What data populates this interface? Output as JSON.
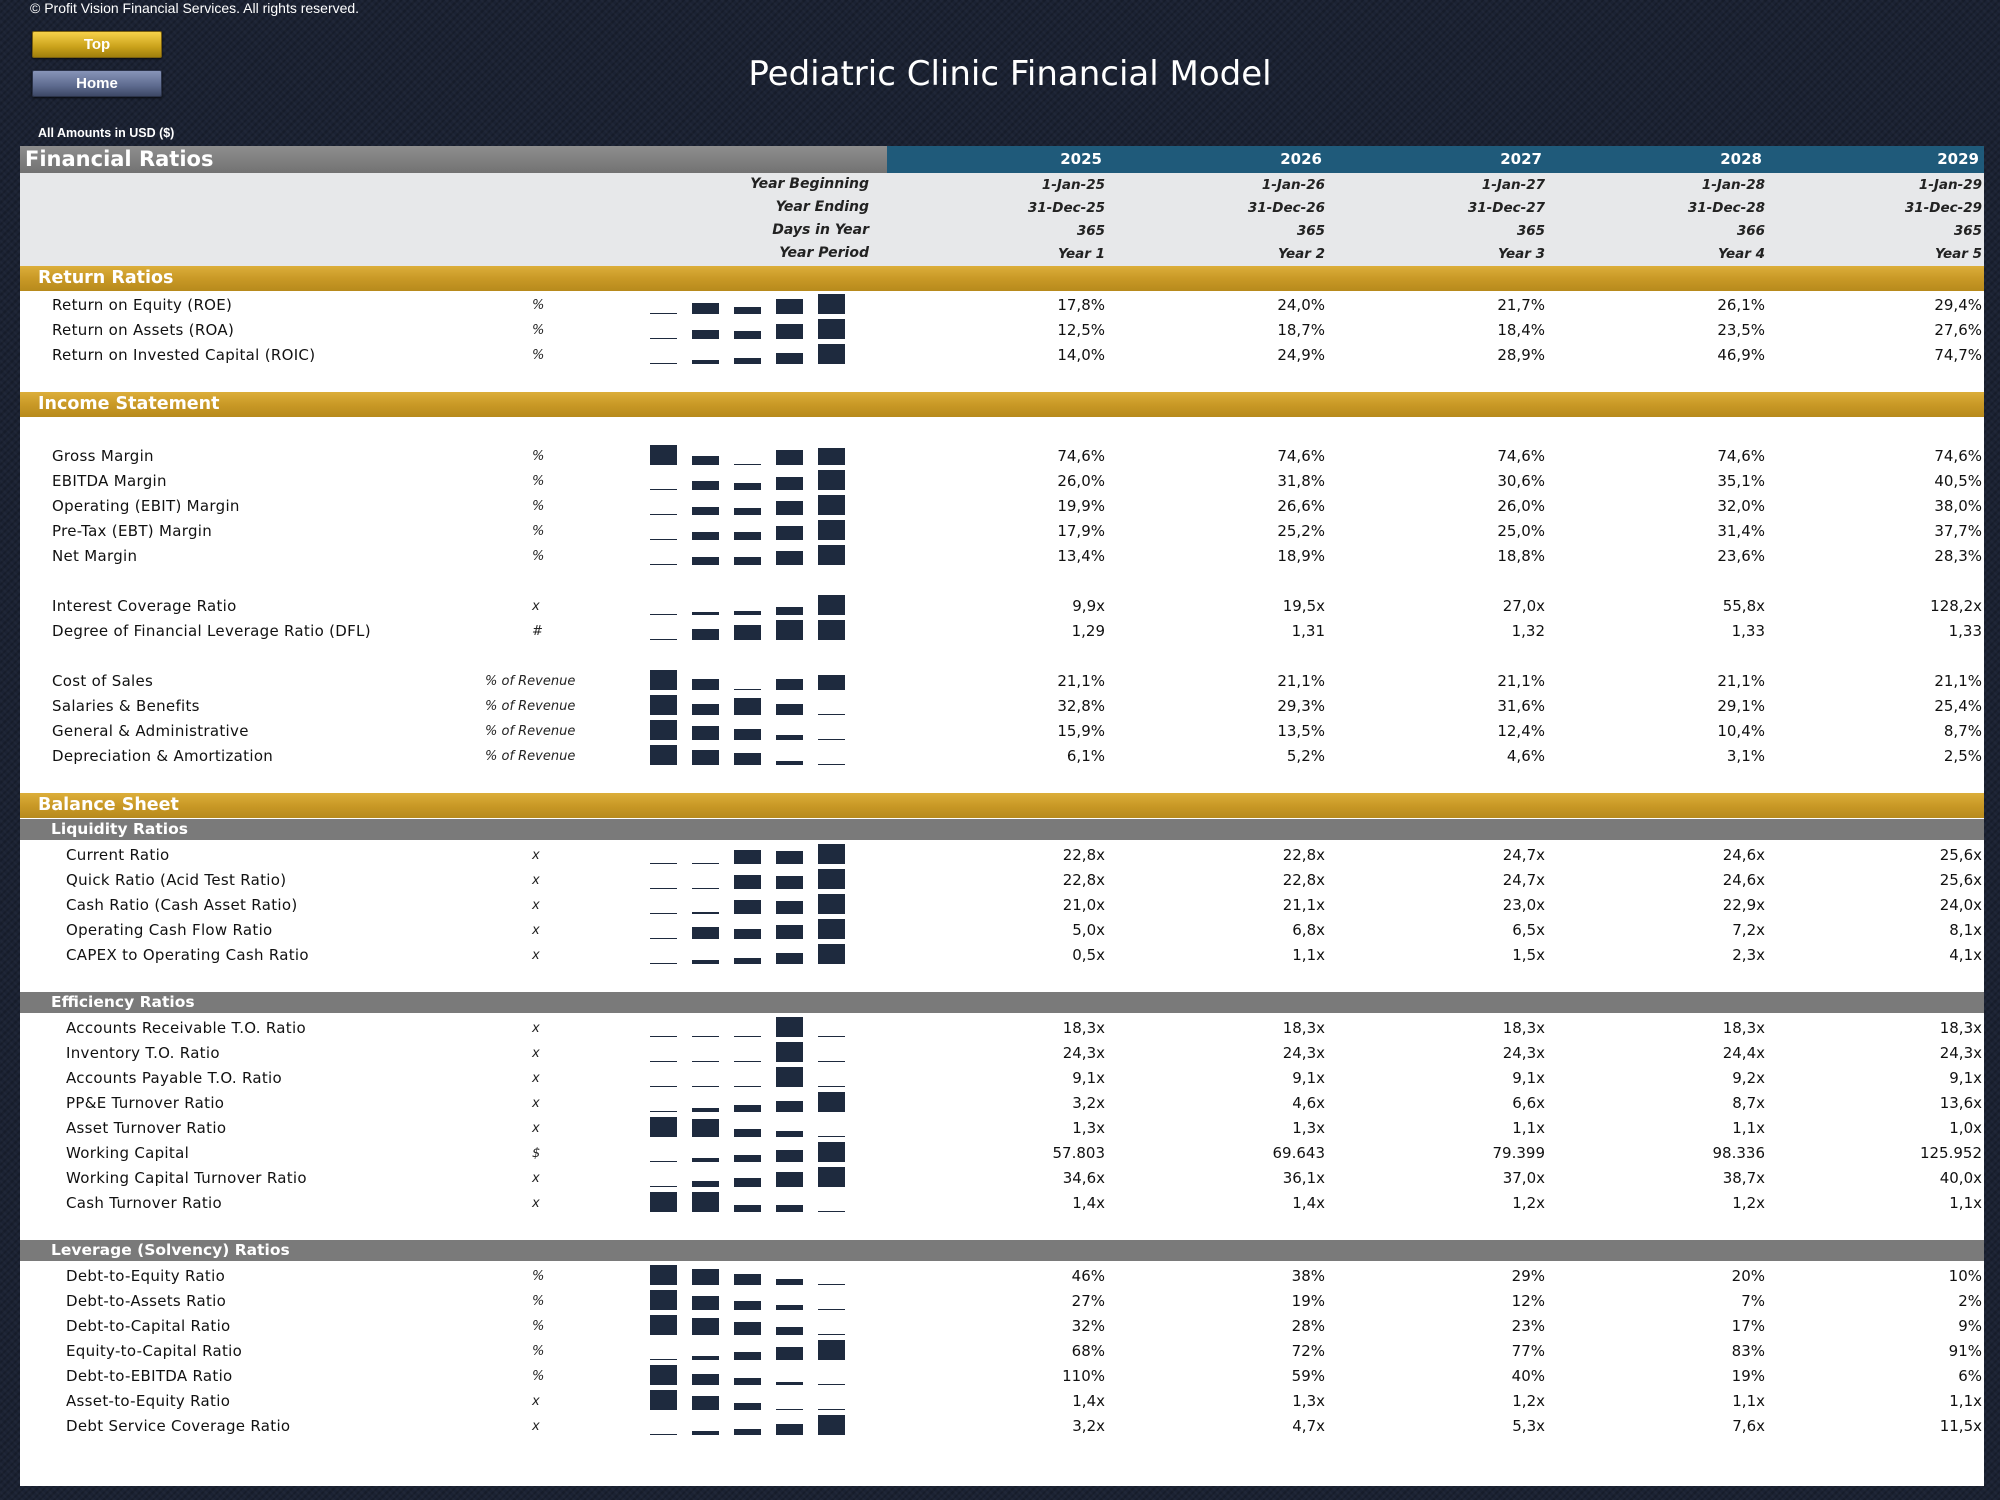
{
  "copyright": "© Profit Vision Financial Services. All rights reserved.",
  "nav": {
    "top_label": "Top",
    "home_label": "Home"
  },
  "title": "Pediatric Clinic Financial Model",
  "amounts_note": "All Amounts in  USD ($)",
  "header": {
    "section_title": "Financial Ratios",
    "years": [
      "2025",
      "2026",
      "2027",
      "2028",
      "2029"
    ]
  },
  "periods": [
    {
      "label": "Year Beginning",
      "values": [
        "1-Jan-25",
        "1-Jan-26",
        "1-Jan-27",
        "1-Jan-28",
        "1-Jan-29"
      ]
    },
    {
      "label": "Year Ending",
      "values": [
        "31-Dec-25",
        "31-Dec-26",
        "31-Dec-27",
        "31-Dec-28",
        "31-Dec-29"
      ]
    },
    {
      "label": "Days in Year",
      "values": [
        "365",
        "365",
        "365",
        "366",
        "365"
      ]
    },
    {
      "label": "Year Period",
      "values": [
        "Year 1",
        "Year 2",
        "Year 3",
        "Year 4",
        "Year 5"
      ]
    }
  ],
  "sections": [
    {
      "kind": "gold",
      "title": "Return Ratios"
    },
    {
      "kind": "row",
      "label": "Return on Equity (ROE)",
      "unit": "%",
      "values": [
        "17,8%",
        "24,0%",
        "21,7%",
        "26,1%",
        "29,4%"
      ],
      "spark": [
        17.8,
        24.0,
        21.7,
        26.1,
        29.4
      ]
    },
    {
      "kind": "row",
      "label": "Return on Assets (ROA)",
      "unit": "%",
      "values": [
        "12,5%",
        "18,7%",
        "18,4%",
        "23,5%",
        "27,6%"
      ],
      "spark": [
        12.5,
        18.7,
        18.4,
        23.5,
        27.6
      ]
    },
    {
      "kind": "row",
      "label": "Return on Invested Capital (ROIC)",
      "unit": "%",
      "values": [
        "14,0%",
        "24,9%",
        "28,9%",
        "46,9%",
        "74,7%"
      ],
      "spark": [
        14.0,
        24.9,
        28.9,
        46.9,
        74.7
      ]
    },
    {
      "kind": "gap"
    },
    {
      "kind": "gold",
      "title": "Income Statement"
    },
    {
      "kind": "gap"
    },
    {
      "kind": "row",
      "label": "Gross Margin",
      "unit": "%",
      "values": [
        "74,6%",
        "74,6%",
        "74,6%",
        "74,6%",
        "74,6%"
      ],
      "spark": [
        74.62,
        74.58,
        74.55,
        74.6,
        74.61
      ]
    },
    {
      "kind": "row",
      "label": "EBITDA Margin",
      "unit": "%",
      "values": [
        "26,0%",
        "31,8%",
        "30,6%",
        "35,1%",
        "40,5%"
      ],
      "spark": [
        26.0,
        31.8,
        30.6,
        35.1,
        40.5
      ]
    },
    {
      "kind": "row",
      "label": "Operating (EBIT) Margin",
      "unit": "%",
      "values": [
        "19,9%",
        "26,6%",
        "26,0%",
        "32,0%",
        "38,0%"
      ],
      "spark": [
        19.9,
        26.6,
        26.0,
        32.0,
        38.0
      ]
    },
    {
      "kind": "row",
      "label": "Pre-Tax (EBT) Margin",
      "unit": "%",
      "values": [
        "17,9%",
        "25,2%",
        "25,0%",
        "31,4%",
        "37,7%"
      ],
      "spark": [
        17.9,
        25.2,
        25.0,
        31.4,
        37.7
      ]
    },
    {
      "kind": "row",
      "label": "Net Margin",
      "unit": "%",
      "values": [
        "13,4%",
        "18,9%",
        "18,8%",
        "23,6%",
        "28,3%"
      ],
      "spark": [
        13.4,
        18.9,
        18.8,
        23.6,
        28.3
      ]
    },
    {
      "kind": "gap"
    },
    {
      "kind": "row",
      "label": "Interest Coverage Ratio",
      "unit": "x",
      "values": [
        "9,9x",
        "19,5x",
        "27,0x",
        "55,8x",
        "128,2x"
      ],
      "spark": [
        9.9,
        19.5,
        27.0,
        55.8,
        128.2
      ]
    },
    {
      "kind": "row",
      "label": "Degree of Financial Leverage Ratio (DFL)",
      "unit": "#",
      "values": [
        "1,29",
        "1,31",
        "1,32",
        "1,33",
        "1,33"
      ],
      "spark": [
        1.29,
        1.31,
        1.32,
        1.33,
        1.33
      ]
    },
    {
      "kind": "gap"
    },
    {
      "kind": "row",
      "label": "Cost of Sales",
      "unit": "% of Revenue",
      "values": [
        "21,1%",
        "21,1%",
        "21,1%",
        "21,1%",
        "21,1%"
      ],
      "spark": [
        21.14,
        21.12,
        21.1,
        21.12,
        21.13
      ]
    },
    {
      "kind": "row",
      "label": "Salaries & Benefits",
      "unit": "% of Revenue",
      "values": [
        "32,8%",
        "29,3%",
        "31,6%",
        "29,1%",
        "25,4%"
      ],
      "spark": [
        32.8,
        29.3,
        31.6,
        29.1,
        25.4
      ]
    },
    {
      "kind": "row",
      "label": "General & Administrative",
      "unit": "% of Revenue",
      "values": [
        "15,9%",
        "13,5%",
        "12,4%",
        "10,4%",
        "8,7%"
      ],
      "spark": [
        15.9,
        13.5,
        12.4,
        10.4,
        8.7
      ]
    },
    {
      "kind": "row",
      "label": "Depreciation & Amortization",
      "unit": "% of Revenue",
      "values": [
        "6,1%",
        "5,2%",
        "4,6%",
        "3,1%",
        "2,5%"
      ],
      "spark": [
        6.1,
        5.2,
        4.6,
        3.1,
        2.5
      ]
    },
    {
      "kind": "gap"
    },
    {
      "kind": "gold",
      "title": "Balance Sheet"
    },
    {
      "kind": "grey",
      "title": "Liquidity Ratios"
    },
    {
      "kind": "row",
      "indent": true,
      "label": "Current Ratio",
      "unit": "x",
      "values": [
        "22,8x",
        "22,8x",
        "24,7x",
        "24,6x",
        "25,6x"
      ],
      "spark": [
        22.8,
        22.8,
        24.7,
        24.6,
        25.6
      ]
    },
    {
      "kind": "row",
      "indent": true,
      "label": "Quick Ratio (Acid Test Ratio)",
      "unit": "x",
      "values": [
        "22,8x",
        "22,8x",
        "24,7x",
        "24,6x",
        "25,6x"
      ],
      "spark": [
        22.8,
        22.8,
        24.7,
        24.6,
        25.6
      ]
    },
    {
      "kind": "row",
      "indent": true,
      "label": "Cash Ratio (Cash Asset Ratio)",
      "unit": "x",
      "values": [
        "21,0x",
        "21,1x",
        "23,0x",
        "22,9x",
        "24,0x"
      ],
      "spark": [
        21.0,
        21.1,
        23.0,
        22.9,
        24.0
      ]
    },
    {
      "kind": "row",
      "indent": true,
      "label": "Operating Cash Flow Ratio",
      "unit": "x",
      "values": [
        "5,0x",
        "6,8x",
        "6,5x",
        "7,2x",
        "8,1x"
      ],
      "spark": [
        5.0,
        6.8,
        6.5,
        7.2,
        8.1
      ]
    },
    {
      "kind": "row",
      "indent": true,
      "label": "CAPEX to Operating Cash Ratio",
      "unit": "x",
      "values": [
        "0,5x",
        "1,1x",
        "1,5x",
        "2,3x",
        "4,1x"
      ],
      "spark": [
        0.5,
        1.1,
        1.5,
        2.3,
        4.1
      ]
    },
    {
      "kind": "gap"
    },
    {
      "kind": "grey",
      "title": "Efficiency Ratios"
    },
    {
      "kind": "row",
      "indent": true,
      "label": "Accounts Receivable T.O. Ratio",
      "unit": "x",
      "values": [
        "18,3x",
        "18,3x",
        "18,3x",
        "18,3x",
        "18,3x"
      ],
      "spark": [
        18.29,
        18.29,
        18.29,
        18.32,
        18.29
      ]
    },
    {
      "kind": "row",
      "indent": true,
      "label": "Inventory T.O. Ratio",
      "unit": "x",
      "values": [
        "24,3x",
        "24,3x",
        "24,3x",
        "24,4x",
        "24,3x"
      ],
      "spark": [
        24.3,
        24.3,
        24.3,
        24.4,
        24.3
      ]
    },
    {
      "kind": "row",
      "indent": true,
      "label": "Accounts Payable T.O. Ratio",
      "unit": "x",
      "values": [
        "9,1x",
        "9,1x",
        "9,1x",
        "9,2x",
        "9,1x"
      ],
      "spark": [
        9.1,
        9.1,
        9.1,
        9.2,
        9.1
      ]
    },
    {
      "kind": "row",
      "indent": true,
      "label": "PP&E Turnover Ratio",
      "unit": "x",
      "values": [
        "3,2x",
        "4,6x",
        "6,6x",
        "8,7x",
        "13,6x"
      ],
      "spark": [
        3.2,
        4.6,
        6.6,
        8.7,
        13.6
      ]
    },
    {
      "kind": "row",
      "indent": true,
      "label": "Asset Turnover Ratio",
      "unit": "x",
      "values": [
        "1,3x",
        "1,3x",
        "1,1x",
        "1,1x",
        "1,0x"
      ],
      "spark": [
        1.32,
        1.28,
        1.12,
        1.08,
        1.0
      ]
    },
    {
      "kind": "row",
      "indent": true,
      "label": "Working Capital",
      "unit": "$",
      "values": [
        "57.803",
        "69.643",
        "79.399",
        "98.336",
        "125.952"
      ],
      "spark": [
        57803,
        69643,
        79399,
        98336,
        125952
      ]
    },
    {
      "kind": "row",
      "indent": true,
      "label": "Working Capital Turnover Ratio",
      "unit": "x",
      "values": [
        "34,6x",
        "36,1x",
        "37,0x",
        "38,7x",
        "40,0x"
      ],
      "spark": [
        34.6,
        36.1,
        37.0,
        38.7,
        40.0
      ]
    },
    {
      "kind": "row",
      "indent": true,
      "label": "Cash Turnover Ratio",
      "unit": "x",
      "values": [
        "1,4x",
        "1,4x",
        "1,2x",
        "1,2x",
        "1,1x"
      ],
      "spark": [
        1.4,
        1.4,
        1.2,
        1.2,
        1.1
      ]
    },
    {
      "kind": "gap"
    },
    {
      "kind": "grey",
      "title": "Leverage (Solvency) Ratios"
    },
    {
      "kind": "row",
      "indent": true,
      "label": "Debt-to-Equity Ratio",
      "unit": "%",
      "values": [
        "46%",
        "38%",
        "29%",
        "20%",
        "10%"
      ],
      "spark": [
        46,
        38,
        29,
        20,
        10
      ]
    },
    {
      "kind": "row",
      "indent": true,
      "label": "Debt-to-Assets Ratio",
      "unit": "%",
      "values": [
        "27%",
        "19%",
        "12%",
        "7%",
        "2%"
      ],
      "spark": [
        27,
        19,
        12,
        7,
        2
      ]
    },
    {
      "kind": "row",
      "indent": true,
      "label": "Debt-to-Capital Ratio",
      "unit": "%",
      "values": [
        "32%",
        "28%",
        "23%",
        "17%",
        "9%"
      ],
      "spark": [
        32,
        28,
        23,
        17,
        9
      ]
    },
    {
      "kind": "row",
      "indent": true,
      "label": "Equity-to-Capital Ratio",
      "unit": "%",
      "values": [
        "68%",
        "72%",
        "77%",
        "83%",
        "91%"
      ],
      "spark": [
        68,
        72,
        77,
        83,
        91
      ]
    },
    {
      "kind": "row",
      "indent": true,
      "label": "Debt-to-EBITDA Ratio",
      "unit": "%",
      "values": [
        "110%",
        "59%",
        "40%",
        "19%",
        "6%"
      ],
      "spark": [
        110,
        59,
        40,
        19,
        6
      ]
    },
    {
      "kind": "row",
      "indent": true,
      "label": "Asset-to-Equity Ratio",
      "unit": "x",
      "values": [
        "1,4x",
        "1,3x",
        "1,2x",
        "1,1x",
        "1,1x"
      ],
      "spark": [
        1.4,
        1.3,
        1.2,
        1.1,
        1.1
      ]
    },
    {
      "kind": "row",
      "indent": true,
      "label": "Debt Service Coverage Ratio",
      "unit": "x",
      "values": [
        "3,2x",
        "4,7x",
        "5,3x",
        "7,6x",
        "11,5x"
      ],
      "spark": [
        3.2,
        4.7,
        5.3,
        7.6,
        11.5
      ]
    }
  ]
}
